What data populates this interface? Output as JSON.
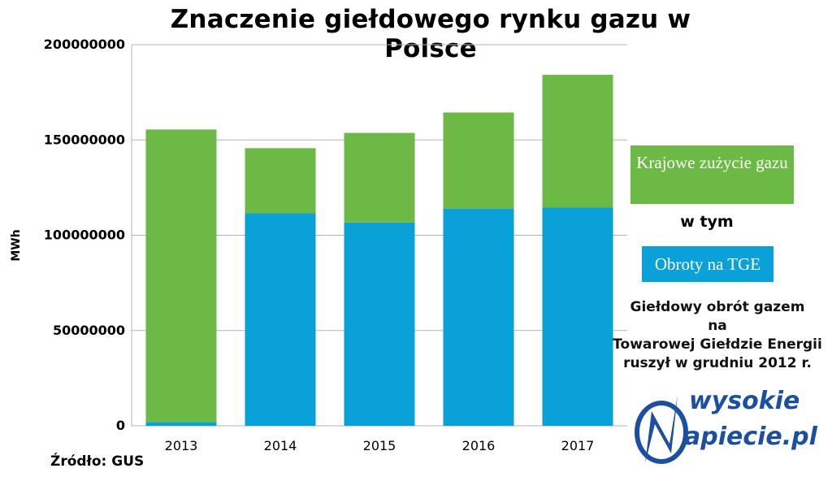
{
  "chart_data": {
    "type": "bar",
    "stacked": true,
    "title": "Znaczenie giełdowego rynku gazu w Polsce",
    "ylabel": "MWh",
    "xlabel": "",
    "categories": [
      "2013",
      "2014",
      "2015",
      "2016",
      "2017"
    ],
    "series": [
      {
        "name": "Obroty na TGE",
        "color": "#0aa1d8",
        "values": [
          2000000,
          111500000,
          106700000,
          114000000,
          114500000
        ]
      },
      {
        "name": "Krajowe zużycie gazu",
        "color": "#6db946",
        "values": [
          153500000,
          34200000,
          47000000,
          50400000,
          69700000
        ],
        "note": "stacked on top of Obroty na TGE; totals 155500000, 145700000, 153700000, 164400000, 184200000"
      }
    ],
    "ylim": [
      0,
      200000000
    ],
    "yticks": [
      "0",
      "50000000",
      "100000000",
      "150000000",
      "200000000"
    ],
    "grid": true,
    "legend_placement": "right"
  },
  "legend": {
    "consumption_label": "Krajowe zużycie gazu",
    "connector": "w tym",
    "tge_label": "Obroty na TGE"
  },
  "note_lines": [
    "Giełdowy obrót gazem",
    "na",
    "Towarowej Giełdzie Energii",
    "ruszył w grudniu 2012 r."
  ],
  "source": "Źródło: GUS",
  "logo": {
    "line1": "wysokie",
    "line2": "apiecie.pl"
  },
  "colors": {
    "tge": "#0aa1d8",
    "consumption": "#6db946",
    "logo": "#1d4fa0"
  }
}
